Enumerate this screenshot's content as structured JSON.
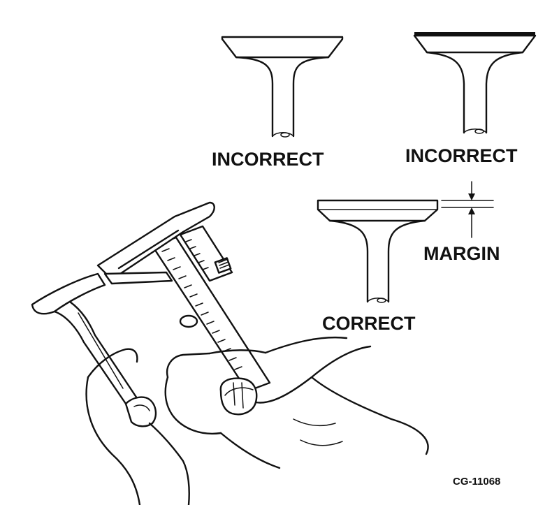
{
  "labels": {
    "incorrect_left": "INCORRECT",
    "incorrect_right": "INCORRECT",
    "correct": "CORRECT",
    "margin": "MARGIN",
    "figure_id": "CG-11068"
  }
}
